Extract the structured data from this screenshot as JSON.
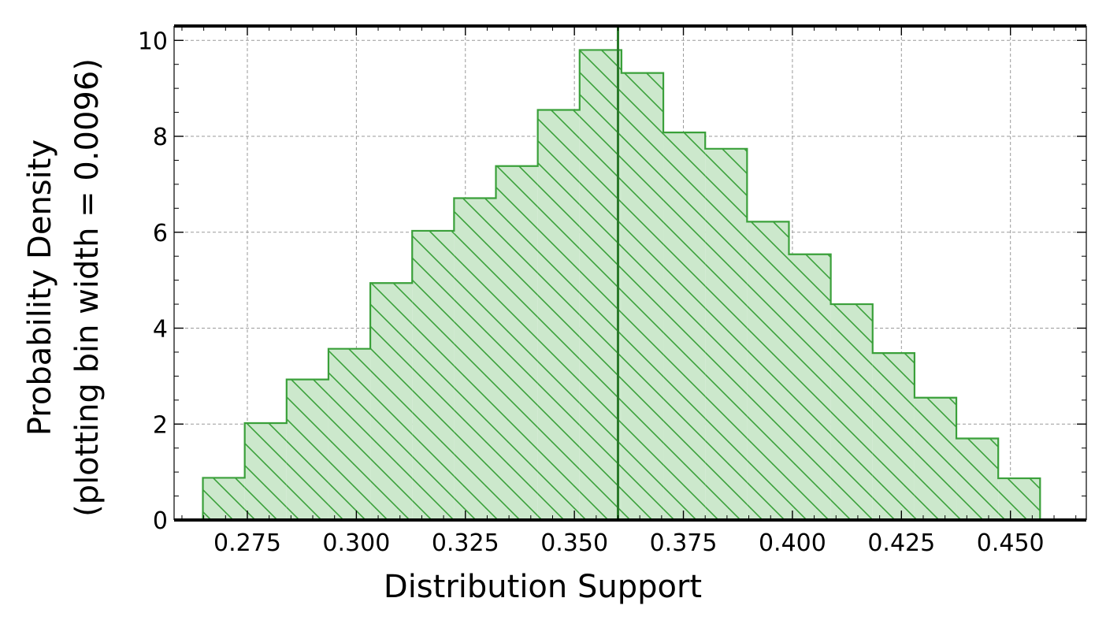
{
  "chart_data": {
    "type": "bar",
    "xlabel": "Distribution Support",
    "ylabel_line1": "Probability Density",
    "ylabel_line2": "(plotting bin width = 0.0096)",
    "xlim": [
      0.2582,
      0.4674
    ],
    "ylim": [
      0,
      10.3
    ],
    "grid": true,
    "x_ticks": [
      0.275,
      0.3,
      0.325,
      0.35,
      0.375,
      0.4,
      0.425,
      0.45
    ],
    "x_tick_labels": [
      "0.275",
      "0.300",
      "0.325",
      "0.350",
      "0.375",
      "0.400",
      "0.425",
      "0.450"
    ],
    "y_ticks": [
      0,
      2,
      4,
      6,
      8,
      10
    ],
    "y_tick_labels": [
      "0",
      "2",
      "4",
      "6",
      "8",
      "10"
    ],
    "bin_edges": [
      0.2648,
      0.2744,
      0.284,
      0.2936,
      0.3032,
      0.3128,
      0.3224,
      0.332,
      0.3416,
      0.3512,
      0.3608,
      0.3704,
      0.38,
      0.3896,
      0.3992,
      0.4088,
      0.4184,
      0.428,
      0.4376,
      0.4472,
      0.4568
    ],
    "densities": [
      0.88,
      2.02,
      2.93,
      3.57,
      4.94,
      6.03,
      6.71,
      7.38,
      8.55,
      9.8,
      9.32,
      8.08,
      7.74,
      6.22,
      5.54,
      4.5,
      3.48,
      2.55,
      1.7,
      0.87
    ],
    "vline_x": 0.36,
    "colors": {
      "fill": "#cce8cc",
      "edge": "#3aa03a",
      "hatch": "#3aa03a",
      "vline": "#2a7a2a",
      "grid": "#9a9a9a"
    }
  }
}
